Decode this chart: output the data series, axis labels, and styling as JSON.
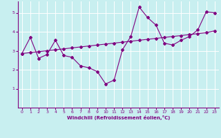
{
  "title": "",
  "xlabel": "Windchill (Refroidissement éolien,°C)",
  "ylabel": "",
  "bg_color": "#c8eff0",
  "line_color": "#800080",
  "xlim": [
    -0.5,
    23.5
  ],
  "ylim": [
    0,
    5.6
  ],
  "yticks": [
    1,
    2,
    3,
    4,
    5
  ],
  "xticks": [
    0,
    1,
    2,
    3,
    4,
    5,
    6,
    7,
    8,
    9,
    10,
    11,
    12,
    13,
    14,
    15,
    16,
    17,
    18,
    19,
    20,
    21,
    22,
    23
  ],
  "curve1_x": [
    0,
    1,
    2,
    3,
    4,
    5,
    6,
    7,
    8,
    9,
    10,
    11,
    12,
    13,
    14,
    15,
    16,
    17,
    18,
    19,
    20,
    21,
    22,
    23
  ],
  "curve1_y": [
    2.85,
    3.7,
    2.6,
    2.8,
    3.55,
    2.75,
    2.65,
    2.2,
    2.1,
    1.9,
    1.25,
    1.45,
    3.05,
    3.75,
    5.3,
    4.75,
    4.35,
    3.4,
    3.3,
    3.55,
    3.75,
    4.1,
    5.05,
    5.0
  ],
  "curve2_x": [
    0,
    1,
    2,
    3,
    4,
    5,
    6,
    7,
    8,
    9,
    10,
    11,
    12,
    13,
    14,
    15,
    16,
    17,
    18,
    19,
    20,
    21,
    22,
    23
  ],
  "curve2_y": [
    2.85,
    2.9,
    2.95,
    3.0,
    3.05,
    3.1,
    3.15,
    3.2,
    3.25,
    3.3,
    3.35,
    3.4,
    3.45,
    3.5,
    3.55,
    3.6,
    3.65,
    3.7,
    3.75,
    3.8,
    3.85,
    3.9,
    3.95,
    4.05
  ],
  "grid_color": "#ffffff",
  "marker": "D",
  "markersize": 2,
  "linewidth": 0.8,
  "xlabel_fontsize": 5,
  "tick_fontsize": 4.5
}
